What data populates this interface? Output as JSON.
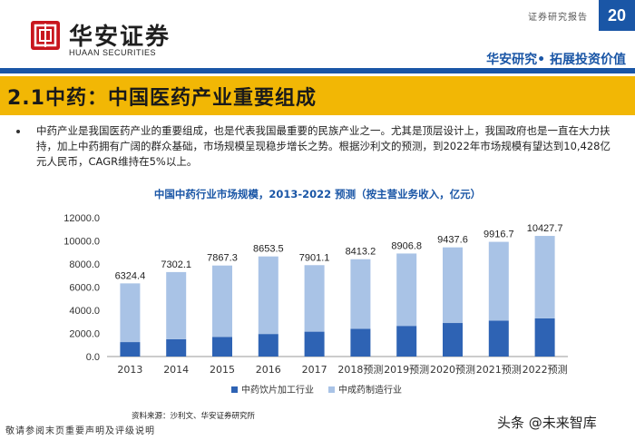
{
  "header": {
    "company_cn": "华安证券",
    "company_en": "HUAAN SECURITIES",
    "report_type": "证券研究报告",
    "page_number": "20",
    "slogan": "华安研究• 拓展投资价值",
    "brand_color": "#1a56a6",
    "logo_color": "#c8161d"
  },
  "section": {
    "title": "2.1中药：中国医药产业重要组成",
    "band_color": "#f2b705"
  },
  "bullet": {
    "text": "中药产业是我国医药产业的重要组成，也是代表我国最重要的民族产业之一。尤其是顶层设计上，我国政府也是一直在大力扶持，加上中药拥有广阔的群众基础，市场规模呈现稳步增长之势。根据沙利文的预测，到2022年市场规模有望达到10,428亿元人民币，CAGR维持在5%以上。"
  },
  "chart_data": {
    "type": "bar",
    "stacked": true,
    "title": "中国中药行业市场规模，2013-2022 预测（按主营业务收入，亿元）",
    "categories": [
      "2013",
      "2014",
      "2015",
      "2016",
      "2017",
      "2018预测",
      "2019预测",
      "2020预测",
      "2021预测",
      "2022预测"
    ],
    "series": [
      {
        "name": "中药饮片加工行业",
        "color": "#2e63b4",
        "values": [
          1250,
          1500,
          1700,
          1950,
          2150,
          2400,
          2650,
          2900,
          3100,
          3300
        ]
      },
      {
        "name": "中成药制造行业",
        "color": "#a9c3e6",
        "values": [
          5074.4,
          5802.1,
          6167.3,
          6703.5,
          5751.1,
          6013.2,
          6256.8,
          6537.6,
          6816.7,
          7127.7
        ]
      }
    ],
    "totals": [
      6324.4,
      7302.1,
      7867.3,
      8653.5,
      7901.1,
      8413.2,
      8906.8,
      9437.6,
      9916.7,
      10427.7
    ],
    "total_labels": [
      "6324.4",
      "7302.1",
      "7867.3",
      "8653.5",
      "7901.1",
      "8413.2",
      "8906.8",
      "9437.6",
      "9916.7",
      "10427.7"
    ],
    "yticks": [
      "0.0",
      "2000.0",
      "4000.0",
      "6000.0",
      "8000.0",
      "10000.0",
      "12000.0"
    ],
    "ylim": [
      0,
      12000
    ],
    "legend": "bottom"
  },
  "footer": {
    "source": "资料来源：沙利文、华安证券研究所",
    "disclaimer": "敬请参阅末页重要声明及评级说明",
    "watermark": "头条 @未来智库"
  }
}
